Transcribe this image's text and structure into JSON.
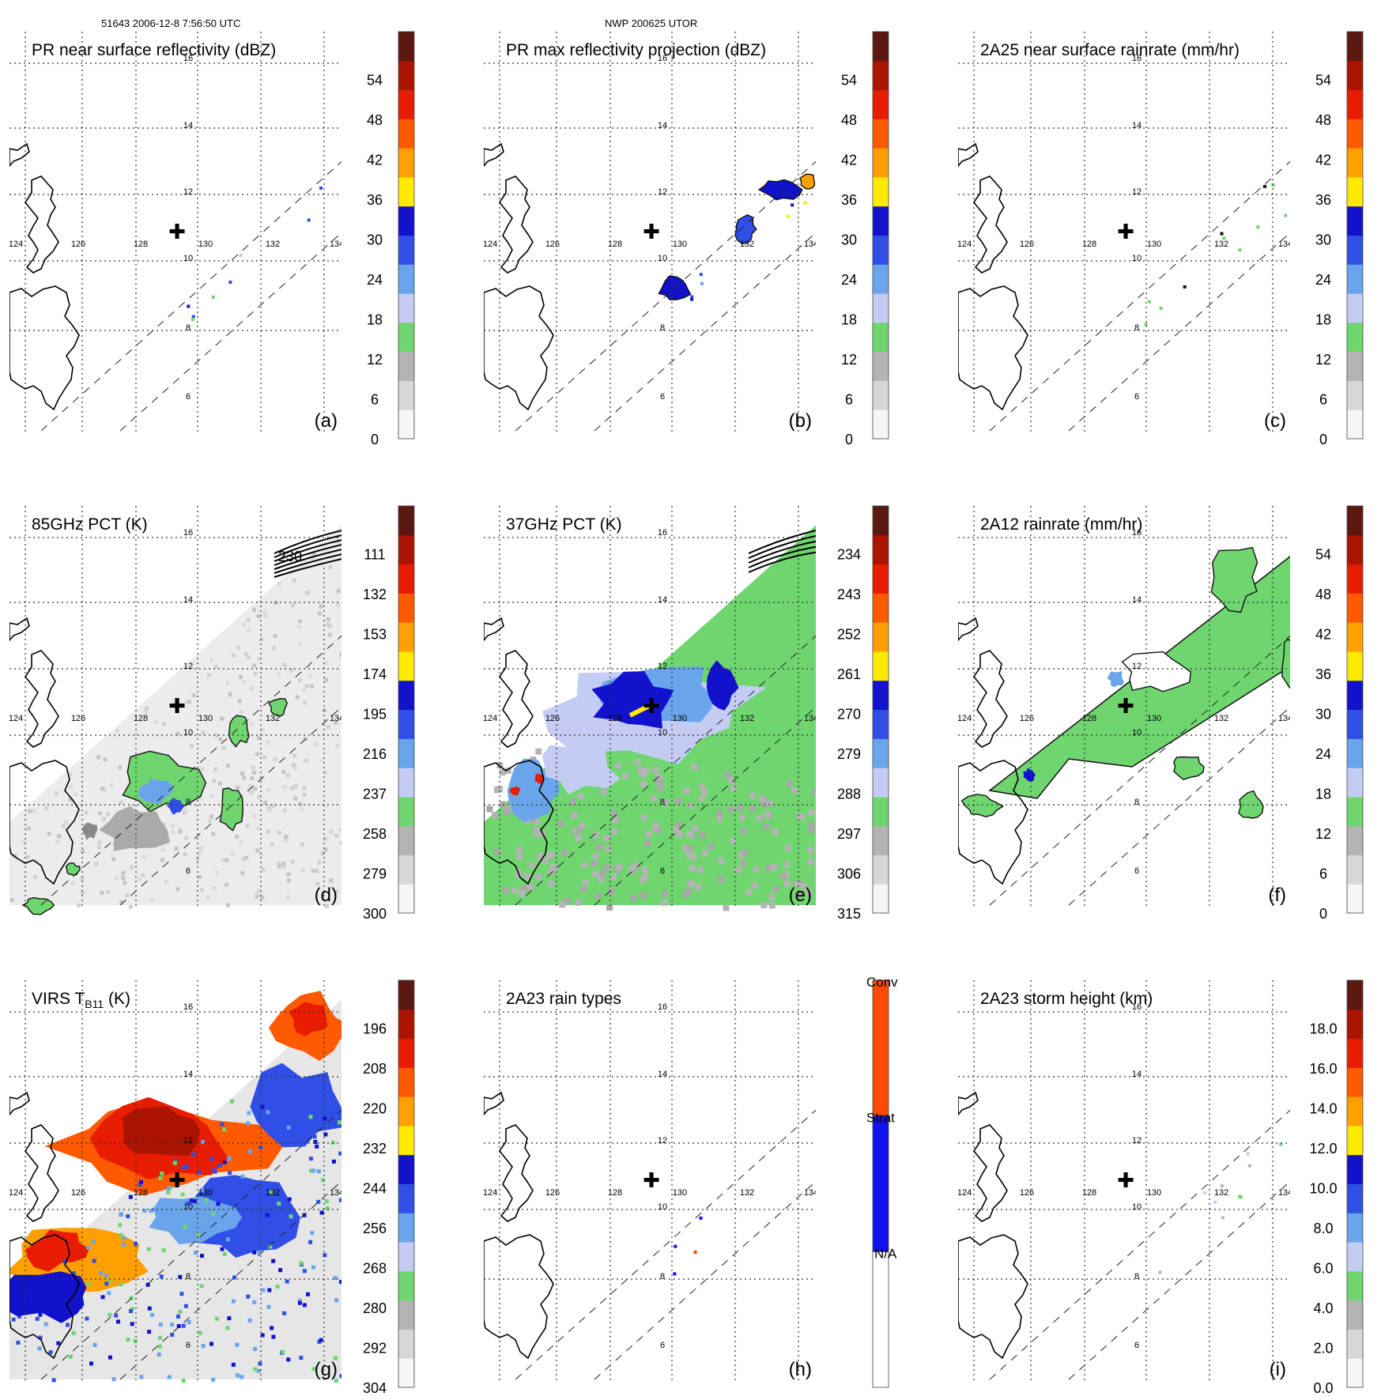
{
  "header": {
    "left": "51643 2006-12-8 7:56:50 UTC",
    "center": "NWP 200625 UTOR"
  },
  "colors": {
    "scale": [
      "#f6f6f6",
      "#d7d7d7",
      "#b4b4b4",
      "#6fd56f",
      "#c4ccf4",
      "#6aa4ea",
      "#2f4fe6",
      "#1212cc",
      "#ffea00",
      "#ffa000",
      "#ff5a00",
      "#e81c00",
      "#aa1400",
      "#5a1810"
    ],
    "rain_types": [
      "#ffffff",
      "#1111ee",
      "#ff4a00"
    ]
  },
  "chart_data": [
    {
      "type": "heatmap",
      "panel": "a",
      "title": "PR near surface reflectivity (dBZ)",
      "lon_ticks": [
        "124",
        "126",
        "128",
        "130",
        "132",
        "134"
      ],
      "lat_ticks": [
        "16",
        "14",
        "12",
        "10",
        "8",
        "6"
      ],
      "colorbar": {
        "ticks": [
          "0",
          "6",
          "12",
          "18",
          "24",
          "30",
          "36",
          "42",
          "48",
          "54"
        ],
        "range": [
          0,
          60
        ]
      },
      "field": "pr",
      "has_marker": true
    },
    {
      "type": "heatmap",
      "panel": "b",
      "title": "PR max reflectivity projection (dBZ)",
      "lon_ticks": [
        "124",
        "126",
        "128",
        "130",
        "132",
        "134"
      ],
      "lat_ticks": [
        "16",
        "14",
        "12",
        "10",
        "8",
        "6"
      ],
      "colorbar": {
        "ticks": [
          "0",
          "6",
          "12",
          "18",
          "24",
          "30",
          "36",
          "42",
          "48",
          "54"
        ],
        "range": [
          0,
          60
        ]
      },
      "field": "prmax",
      "has_marker": true
    },
    {
      "type": "heatmap",
      "panel": "c",
      "title": "2A25 near surface rainrate (mm/hr)",
      "lon_ticks": [
        "124",
        "126",
        "128",
        "130",
        "132",
        "134"
      ],
      "lat_ticks": [
        "16",
        "14",
        "12",
        "10",
        "8",
        "6"
      ],
      "colorbar": {
        "ticks": [
          "0",
          "6",
          "12",
          "18",
          "24",
          "30",
          "36",
          "42",
          "48",
          "54"
        ],
        "range": [
          0,
          60
        ]
      },
      "field": "rain25",
      "has_marker": true
    },
    {
      "type": "heatmap",
      "panel": "d",
      "title": "85GHz PCT (K)",
      "lon_ticks": [
        "124",
        "126",
        "128",
        "130",
        "132",
        "134"
      ],
      "lat_ticks": [
        "16",
        "14",
        "12",
        "10",
        "8",
        "6"
      ],
      "colorbar": {
        "ticks": [
          "300",
          "279",
          "258",
          "237",
          "216",
          "195",
          "174",
          "153",
          "132",
          "111"
        ],
        "range": [
          300,
          90
        ]
      },
      "field": "pct85",
      "has_marker": true,
      "annotation": "230"
    },
    {
      "type": "heatmap",
      "panel": "e",
      "title": "37GHz PCT (K)",
      "lon_ticks": [
        "124",
        "126",
        "128",
        "130",
        "132",
        "134"
      ],
      "lat_ticks": [
        "16",
        "14",
        "12",
        "10",
        "8",
        "6"
      ],
      "colorbar": {
        "ticks": [
          "315",
          "306",
          "297",
          "288",
          "279",
          "270",
          "261",
          "252",
          "243",
          "234"
        ],
        "range": [
          315,
          225
        ]
      },
      "field": "pct37",
      "has_marker": true
    },
    {
      "type": "heatmap",
      "panel": "f",
      "title": "2A12 rainrate (mm/hr)",
      "lon_ticks": [
        "124",
        "126",
        "128",
        "130",
        "132",
        "134"
      ],
      "lat_ticks": [
        "16",
        "14",
        "12",
        "10",
        "8",
        "6"
      ],
      "colorbar": {
        "ticks": [
          "0",
          "6",
          "12",
          "18",
          "24",
          "30",
          "36",
          "42",
          "48",
          "54"
        ],
        "range": [
          0,
          60
        ]
      },
      "field": "rain12",
      "has_marker": true
    },
    {
      "type": "heatmap",
      "panel": "g",
      "title": "VIRS T",
      "title_sub": "B11",
      "title_suffix": " (K)",
      "lon_ticks": [
        "124",
        "126",
        "128",
        "130",
        "132",
        "134"
      ],
      "lat_ticks": [
        "16",
        "14",
        "12",
        "10",
        "8",
        "6"
      ],
      "colorbar": {
        "ticks": [
          "304",
          "292",
          "280",
          "268",
          "256",
          "244",
          "232",
          "220",
          "208",
          "196"
        ],
        "range": [
          304,
          184
        ]
      },
      "field": "virs",
      "has_marker": true
    },
    {
      "type": "heatmap",
      "panel": "h",
      "title": "2A23 rain types",
      "lon_ticks": [
        "124",
        "126",
        "128",
        "130",
        "132",
        "134"
      ],
      "lat_ticks": [
        "16",
        "14",
        "12",
        "10",
        "8",
        "6"
      ],
      "colorbar": {
        "ticks": [
          "N/A",
          "Strat",
          "Conv"
        ],
        "categorical": true
      },
      "field": "raintype",
      "has_marker": true
    },
    {
      "type": "heatmap",
      "panel": "i",
      "title": "2A23 storm height (km)",
      "lon_ticks": [
        "124",
        "126",
        "128",
        "130",
        "132",
        "134"
      ],
      "lat_ticks": [
        "16",
        "14",
        "12",
        "10",
        "8",
        "6"
      ],
      "colorbar": {
        "ticks": [
          "0.0",
          "2.0",
          "4.0",
          "6.0",
          "8.0",
          "10.0",
          "12.0",
          "14.0",
          "16.0",
          "18.0"
        ],
        "range": [
          0,
          20
        ]
      },
      "field": "height",
      "has_marker": true
    }
  ],
  "panel_labels": [
    "(a)",
    "(b)",
    "(c)",
    "(d)",
    "(e)",
    "(f)",
    "(g)",
    "(h)",
    "(i)"
  ]
}
